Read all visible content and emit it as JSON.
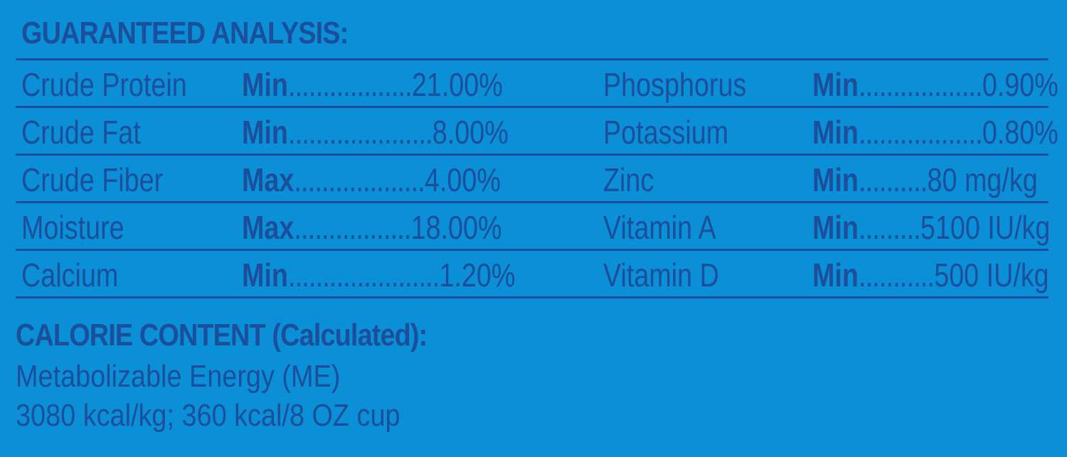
{
  "guaranteed_analysis": {
    "title": "GUARANTEED ANALYSIS:",
    "rows": [
      {
        "left": {
          "nutrient": "Crude Protein",
          "kind": "Min",
          "leader": "..................",
          "value": "21.00%"
        },
        "right": {
          "nutrient": "Phosphorus",
          "kind": "Min",
          "leader": "..................",
          "value": "0.90%"
        }
      },
      {
        "left": {
          "nutrient": "Crude Fat",
          "kind": "Min",
          "leader": ".....................",
          "value": "8.00%"
        },
        "right": {
          "nutrient": "Potassium",
          "kind": "Min",
          "leader": "..................",
          "value": "0.80%"
        }
      },
      {
        "left": {
          "nutrient": "Crude Fiber",
          "kind": "Max",
          "leader": "...................",
          "value": "4.00%"
        },
        "right": {
          "nutrient": "Zinc",
          "kind": "Min",
          "leader": "..........",
          "value": "80 mg/kg"
        }
      },
      {
        "left": {
          "nutrient": "Moisture",
          "kind": "Max",
          "leader": ".................",
          "value": "18.00%"
        },
        "right": {
          "nutrient": "Vitamin A",
          "kind": "Min",
          "leader": ".........",
          "value": "5100 IU/kg"
        }
      },
      {
        "left": {
          "nutrient": "Calcium",
          "kind": "Min",
          "leader": "......................",
          "value": "1.20%"
        },
        "right": {
          "nutrient": "Vitamin D",
          "kind": "Min",
          "leader": "...........",
          "value": "500 IU/kg"
        }
      }
    ]
  },
  "calorie_content": {
    "title": "CALORIE CONTENT (Calculated):",
    "line1": "Metabolizable Energy (ME)",
    "line2": "3080 kcal/kg; 360 kcal/8 OZ cup"
  },
  "colors": {
    "background": "#0b8fd6",
    "text": "#1b4f9c"
  }
}
